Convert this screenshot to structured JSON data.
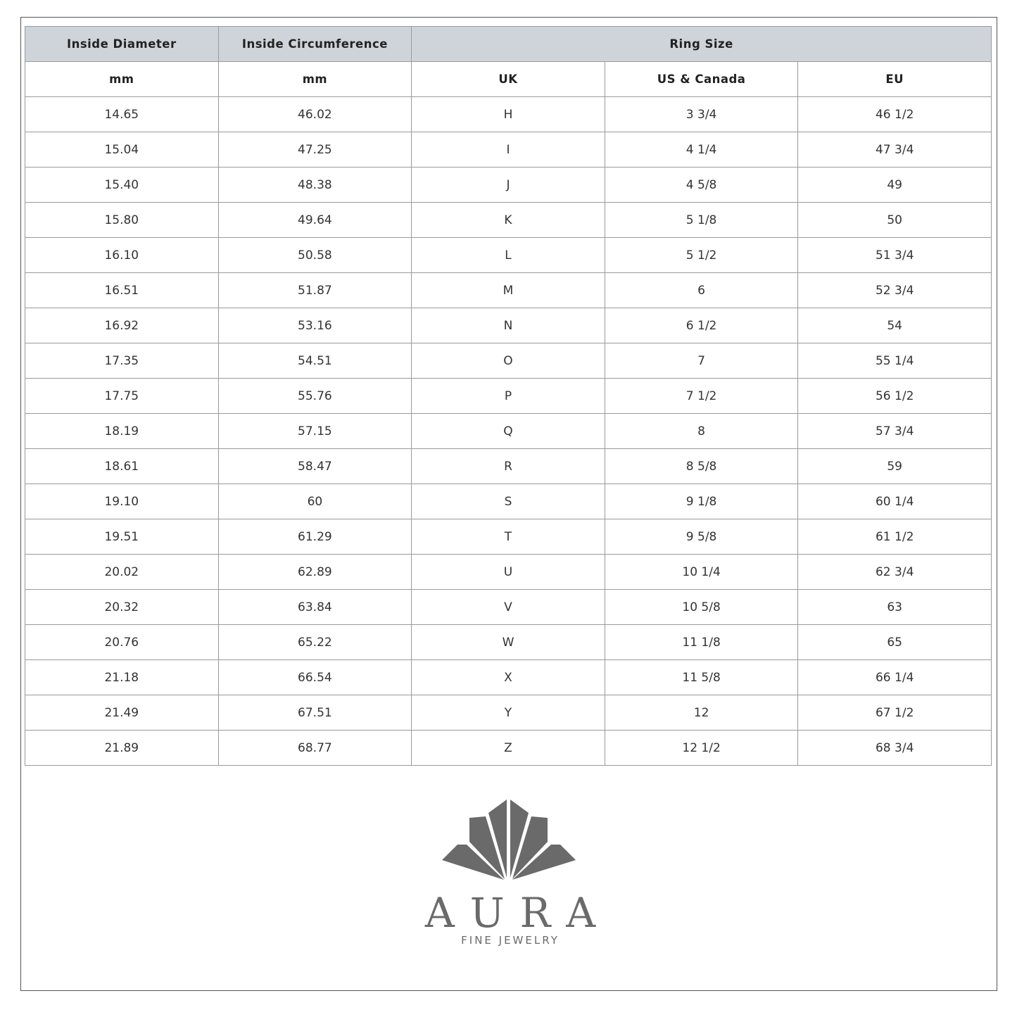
{
  "header": {
    "top": [
      "Inside Diameter",
      "Inside Circumference",
      "Ring Size"
    ],
    "sub": [
      "mm",
      "mm",
      "UK",
      "US & Canada",
      "EU"
    ]
  },
  "rows": [
    [
      "14.65",
      "46.02",
      "H",
      "3 3/4",
      "46 1/2"
    ],
    [
      "15.04",
      "47.25",
      "I",
      "4 1/4",
      "47 3/4"
    ],
    [
      "15.40",
      "48.38",
      "J",
      "4 5/8",
      "49"
    ],
    [
      "15.80",
      "49.64",
      "K",
      "5 1/8",
      "50"
    ],
    [
      "16.10",
      "50.58",
      "L",
      "5 1/2",
      "51 3/4"
    ],
    [
      "16.51",
      "51.87",
      "M",
      "6",
      "52 3/4"
    ],
    [
      "16.92",
      "53.16",
      "N",
      "6 1/2",
      "54"
    ],
    [
      "17.35",
      "54.51",
      "O",
      "7",
      "55 1/4"
    ],
    [
      "17.75",
      "55.76",
      "P",
      "7 1/2",
      "56 1/2"
    ],
    [
      "18.19",
      "57.15",
      "Q",
      "8",
      "57 3/4"
    ],
    [
      "18.61",
      "58.47",
      "R",
      "8 5/8",
      "59"
    ],
    [
      "19.10",
      "60",
      "S",
      "9 1/8",
      "60 1/4"
    ],
    [
      "19.51",
      "61.29",
      "T",
      "9 5/8",
      "61 1/2"
    ],
    [
      "20.02",
      "62.89",
      "U",
      "10 1/4",
      "62 3/4"
    ],
    [
      "20.32",
      "63.84",
      "V",
      "10 5/8",
      "63"
    ],
    [
      "20.76",
      "65.22",
      "W",
      "11 1/8",
      "65"
    ],
    [
      "21.18",
      "66.54",
      "X",
      "11 5/8",
      "66 1/4"
    ],
    [
      "21.49",
      "67.51",
      "Y",
      "12",
      "67 1/2"
    ],
    [
      "21.89",
      "68.77",
      "Z",
      "12 1/2",
      "68 3/4"
    ]
  ],
  "logo": {
    "name": "AURA",
    "tagline": "FINE JEWELRY",
    "color": "#6a6a6a"
  },
  "colors": {
    "header_bg": "#cfd4db",
    "border": "#9a9a9a"
  }
}
